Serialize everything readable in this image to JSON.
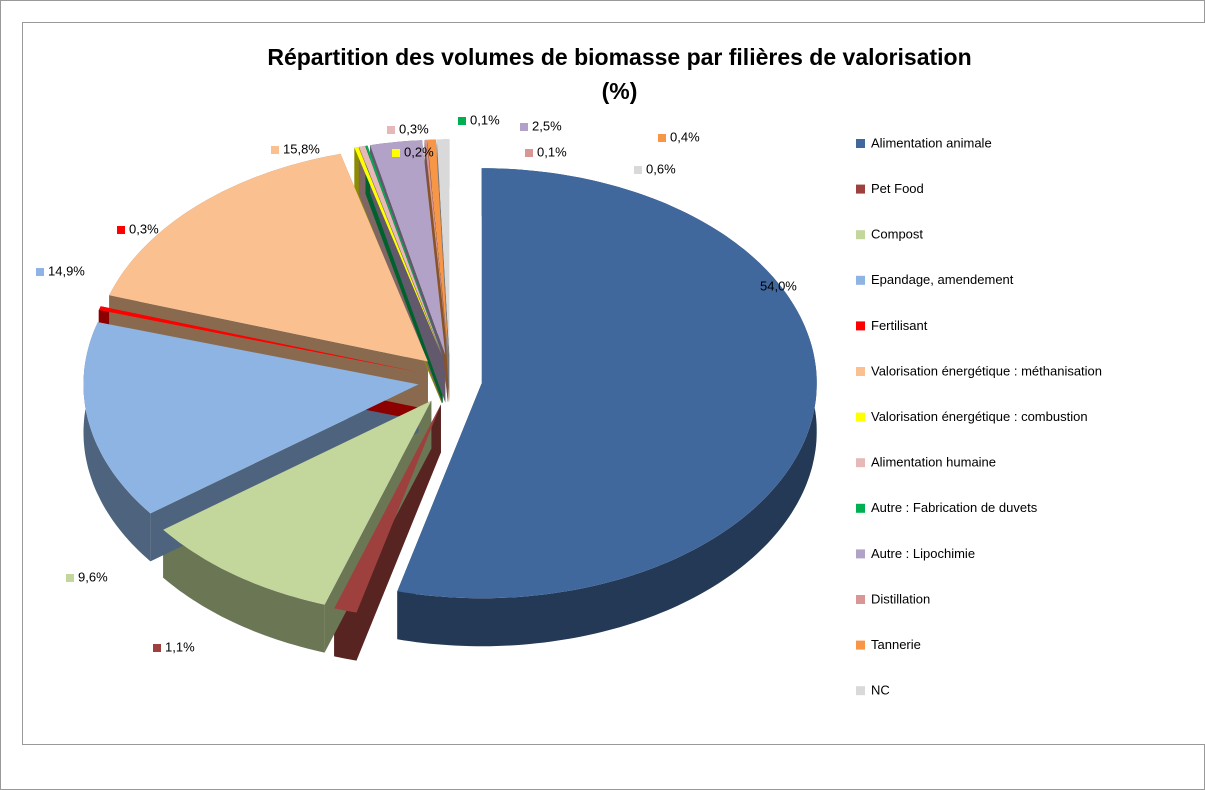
{
  "chart_data": {
    "type": "pie",
    "title": "Répartition des volumes de biomasse par filières de valorisation (%)",
    "categories": [
      "Alimentation animale",
      "Pet Food",
      "Compost",
      "Epandage, amendement",
      "Fertilisant",
      "Valorisation énergétique : méthanisation",
      "Valorisation énergétique : combustion",
      "Alimentation humaine",
      "Autre : Fabrication de duvets",
      "Autre : Lipochimie",
      "Distillation",
      "Tannerie",
      "NC"
    ],
    "values": [
      54.0,
      1.1,
      9.6,
      14.9,
      0.3,
      15.8,
      0.2,
      0.3,
      0.1,
      2.5,
      0.1,
      0.4,
      0.6
    ],
    "value_labels": [
      "54,0%",
      "1,1%",
      "9,6%",
      "14,9%",
      "0,3%",
      "15,8%",
      "0,2%",
      "0,3%",
      "0,1%",
      "2,5%",
      "0,1%",
      "0,4%",
      "0,6%"
    ],
    "colors": [
      "#41689c",
      "#9e413e",
      "#c3d69b",
      "#8eb4e3",
      "#ff0000",
      "#fac090",
      "#ffff00",
      "#e6b9b8",
      "#00b050",
      "#b3a2c7",
      "#d99694",
      "#f79646",
      "#d9d9d9"
    ],
    "legend": "right"
  }
}
